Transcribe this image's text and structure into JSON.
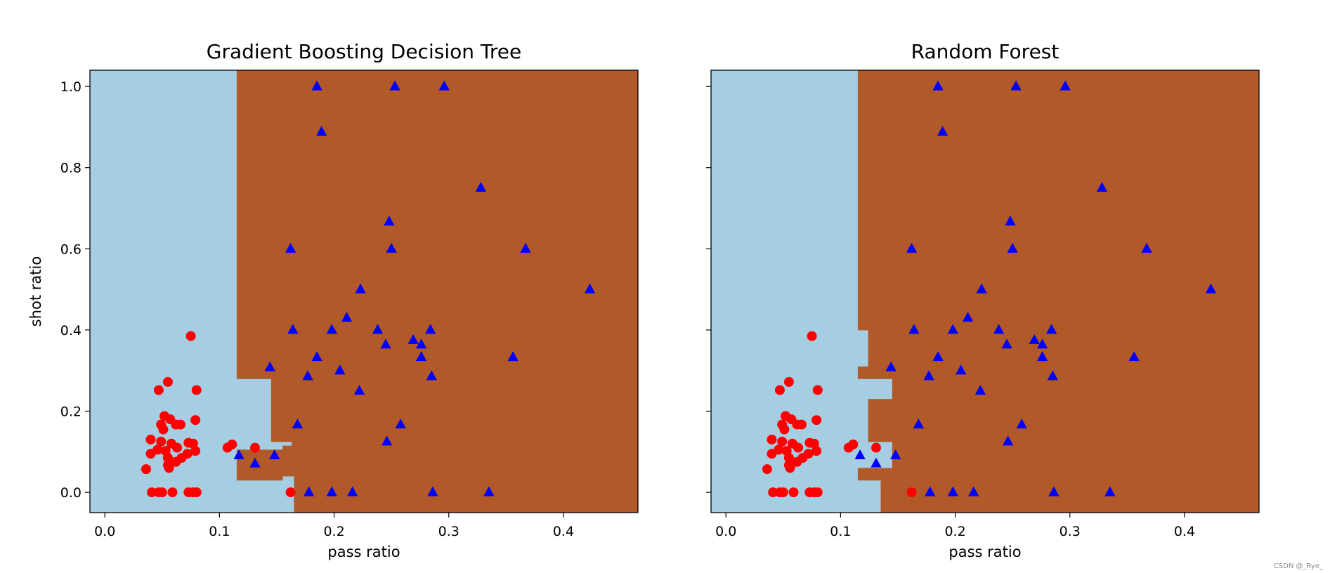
{
  "watermark": "CSDN @_Rye_",
  "colors": {
    "region_class_0": "#a6cee3",
    "region_class_1": "#b15928",
    "class_0_marker": "#ff0000",
    "class_1_marker": "#0000ff"
  },
  "chart_data": [
    {
      "type": "scatter",
      "title": "Gradient Boosting Decision Tree",
      "xlabel": "pass ratio",
      "ylabel": "shot ratio",
      "xlim": [
        -0.013,
        0.465
      ],
      "ylim": [
        -0.05,
        1.04
      ],
      "xticks": [
        0.0,
        0.1,
        0.2,
        0.3,
        0.4
      ],
      "xtick_labels": [
        "0.0",
        "0.1",
        "0.2",
        "0.3",
        "0.4"
      ],
      "yticks": [
        0.0,
        0.2,
        0.4,
        0.6,
        0.8,
        1.0
      ],
      "ytick_labels": [
        "0.0",
        "0.2",
        "0.4",
        "0.6",
        "0.8",
        "1.0"
      ],
      "grid": false,
      "background_class": 0,
      "decision_regions_class_1": [
        [
          0.115,
          0.28,
          0.465,
          1.04
        ],
        [
          0.145,
          0.125,
          0.465,
          0.28
        ],
        [
          0.163,
          0.115,
          0.465,
          0.125
        ],
        [
          0.155,
          0.04,
          0.465,
          0.115
        ],
        [
          0.115,
          0.03,
          0.155,
          0.105
        ],
        [
          0.165,
          -0.05,
          0.465,
          0.04
        ]
      ],
      "series": [
        {
          "class": 0,
          "marker": "circle",
          "points": [
            [
              0.075,
              0.385
            ],
            [
              0.055,
              0.272
            ],
            [
              0.047,
              0.252
            ],
            [
              0.08,
              0.252
            ],
            [
              0.052,
              0.188
            ],
            [
              0.057,
              0.18
            ],
            [
              0.079,
              0.178
            ],
            [
              0.049,
              0.167
            ],
            [
              0.062,
              0.167
            ],
            [
              0.066,
              0.167
            ],
            [
              0.051,
              0.155
            ],
            [
              0.04,
              0.13
            ],
            [
              0.049,
              0.125
            ],
            [
              0.058,
              0.12
            ],
            [
              0.073,
              0.122
            ],
            [
              0.077,
              0.12
            ],
            [
              0.046,
              0.105
            ],
            [
              0.053,
              0.102
            ],
            [
              0.063,
              0.11
            ],
            [
              0.079,
              0.102
            ],
            [
              0.04,
              0.095
            ],
            [
              0.055,
              0.085
            ],
            [
              0.067,
              0.085
            ],
            [
              0.072,
              0.095
            ],
            [
              0.062,
              0.075
            ],
            [
              0.055,
              0.067
            ],
            [
              0.036,
              0.057
            ],
            [
              0.056,
              0.06
            ],
            [
              0.041,
              0.0
            ],
            [
              0.047,
              0.0
            ],
            [
              0.05,
              0.0
            ],
            [
              0.059,
              0.0
            ],
            [
              0.073,
              0.0
            ],
            [
              0.077,
              0.0
            ],
            [
              0.08,
              0.0
            ],
            [
              0.107,
              0.11
            ],
            [
              0.111,
              0.118
            ],
            [
              0.131,
              0.11
            ],
            [
              0.162,
              0.0
            ]
          ]
        },
        {
          "class": 1,
          "marker": "triangle",
          "points": [
            [
              0.185,
              1.0
            ],
            [
              0.253,
              1.0
            ],
            [
              0.296,
              1.0
            ],
            [
              0.189,
              0.888
            ],
            [
              0.328,
              0.75
            ],
            [
              0.248,
              0.667
            ],
            [
              0.162,
              0.6
            ],
            [
              0.25,
              0.6
            ],
            [
              0.367,
              0.6
            ],
            [
              0.223,
              0.5
            ],
            [
              0.423,
              0.5
            ],
            [
              0.211,
              0.43
            ],
            [
              0.164,
              0.4
            ],
            [
              0.198,
              0.4
            ],
            [
              0.238,
              0.4
            ],
            [
              0.284,
              0.4
            ],
            [
              0.269,
              0.375
            ],
            [
              0.245,
              0.364
            ],
            [
              0.276,
              0.364
            ],
            [
              0.185,
              0.333
            ],
            [
              0.276,
              0.333
            ],
            [
              0.356,
              0.333
            ],
            [
              0.144,
              0.308
            ],
            [
              0.205,
              0.3
            ],
            [
              0.177,
              0.286
            ],
            [
              0.285,
              0.286
            ],
            [
              0.222,
              0.25
            ],
            [
              0.168,
              0.167
            ],
            [
              0.258,
              0.167
            ],
            [
              0.246,
              0.125
            ],
            [
              0.117,
              0.091
            ],
            [
              0.148,
              0.091
            ],
            [
              0.131,
              0.071
            ],
            [
              0.178,
              0.0
            ],
            [
              0.198,
              0.0
            ],
            [
              0.216,
              0.0
            ],
            [
              0.286,
              0.0
            ],
            [
              0.335,
              0.0
            ]
          ]
        }
      ]
    },
    {
      "type": "scatter",
      "title": "Random Forest",
      "xlabel": "pass ratio",
      "ylabel": "",
      "xlim": [
        -0.013,
        0.465
      ],
      "ylim": [
        -0.05,
        1.04
      ],
      "xticks": [
        0.0,
        0.1,
        0.2,
        0.3,
        0.4
      ],
      "xtick_labels": [
        "0.0",
        "0.1",
        "0.2",
        "0.3",
        "0.4"
      ],
      "yticks": [
        0.0,
        0.2,
        0.4,
        0.6,
        0.8,
        1.0
      ],
      "ytick_labels": [],
      "grid": false,
      "background_class": 0,
      "decision_regions_class_1": [
        [
          0.115,
          0.4,
          0.465,
          1.04
        ],
        [
          0.124,
          0.31,
          0.465,
          0.4
        ],
        [
          0.115,
          0.28,
          0.465,
          0.31
        ],
        [
          0.145,
          0.23,
          0.465,
          0.28
        ],
        [
          0.124,
          0.125,
          0.465,
          0.23
        ],
        [
          0.145,
          0.06,
          0.465,
          0.125
        ],
        [
          0.135,
          -0.05,
          0.465,
          0.06
        ],
        [
          0.115,
          0.03,
          0.135,
          0.06
        ]
      ],
      "series": [
        {
          "class": 0,
          "marker": "circle",
          "points": [
            [
              0.075,
              0.385
            ],
            [
              0.055,
              0.272
            ],
            [
              0.047,
              0.252
            ],
            [
              0.08,
              0.252
            ],
            [
              0.052,
              0.188
            ],
            [
              0.057,
              0.18
            ],
            [
              0.079,
              0.178
            ],
            [
              0.049,
              0.167
            ],
            [
              0.062,
              0.167
            ],
            [
              0.066,
              0.167
            ],
            [
              0.051,
              0.155
            ],
            [
              0.04,
              0.13
            ],
            [
              0.049,
              0.125
            ],
            [
              0.058,
              0.12
            ],
            [
              0.073,
              0.122
            ],
            [
              0.077,
              0.12
            ],
            [
              0.046,
              0.105
            ],
            [
              0.053,
              0.102
            ],
            [
              0.063,
              0.11
            ],
            [
              0.079,
              0.102
            ],
            [
              0.04,
              0.095
            ],
            [
              0.055,
              0.085
            ],
            [
              0.067,
              0.085
            ],
            [
              0.072,
              0.095
            ],
            [
              0.062,
              0.075
            ],
            [
              0.055,
              0.067
            ],
            [
              0.036,
              0.057
            ],
            [
              0.056,
              0.06
            ],
            [
              0.041,
              0.0
            ],
            [
              0.047,
              0.0
            ],
            [
              0.05,
              0.0
            ],
            [
              0.059,
              0.0
            ],
            [
              0.073,
              0.0
            ],
            [
              0.077,
              0.0
            ],
            [
              0.08,
              0.0
            ],
            [
              0.107,
              0.11
            ],
            [
              0.111,
              0.118
            ],
            [
              0.131,
              0.11
            ],
            [
              0.162,
              0.0
            ]
          ]
        },
        {
          "class": 1,
          "marker": "triangle",
          "points": [
            [
              0.185,
              1.0
            ],
            [
              0.253,
              1.0
            ],
            [
              0.296,
              1.0
            ],
            [
              0.189,
              0.888
            ],
            [
              0.328,
              0.75
            ],
            [
              0.248,
              0.667
            ],
            [
              0.162,
              0.6
            ],
            [
              0.25,
              0.6
            ],
            [
              0.367,
              0.6
            ],
            [
              0.223,
              0.5
            ],
            [
              0.423,
              0.5
            ],
            [
              0.211,
              0.43
            ],
            [
              0.164,
              0.4
            ],
            [
              0.198,
              0.4
            ],
            [
              0.238,
              0.4
            ],
            [
              0.284,
              0.4
            ],
            [
              0.269,
              0.375
            ],
            [
              0.245,
              0.364
            ],
            [
              0.276,
              0.364
            ],
            [
              0.185,
              0.333
            ],
            [
              0.276,
              0.333
            ],
            [
              0.356,
              0.333
            ],
            [
              0.144,
              0.308
            ],
            [
              0.205,
              0.3
            ],
            [
              0.177,
              0.286
            ],
            [
              0.285,
              0.286
            ],
            [
              0.222,
              0.25
            ],
            [
              0.168,
              0.167
            ],
            [
              0.258,
              0.167
            ],
            [
              0.246,
              0.125
            ],
            [
              0.117,
              0.091
            ],
            [
              0.148,
              0.091
            ],
            [
              0.131,
              0.071
            ],
            [
              0.178,
              0.0
            ],
            [
              0.198,
              0.0
            ],
            [
              0.216,
              0.0
            ],
            [
              0.286,
              0.0
            ],
            [
              0.335,
              0.0
            ]
          ]
        }
      ]
    }
  ]
}
